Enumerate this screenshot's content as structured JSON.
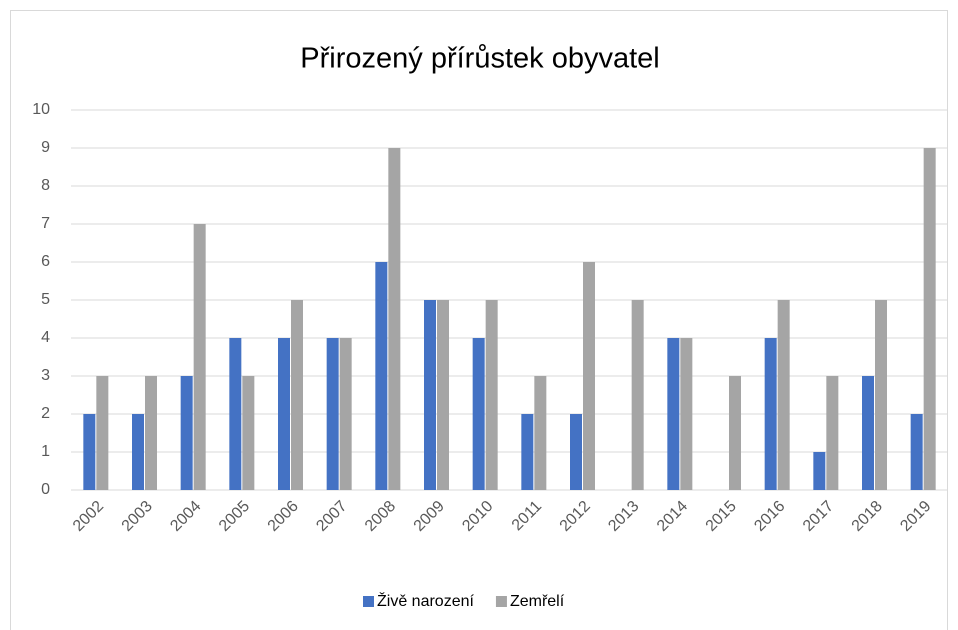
{
  "chart_data": {
    "type": "bar",
    "title": "Přirozený přírůstek obyvatel",
    "categories": [
      "2002",
      "2003",
      "2004",
      "2005",
      "2006",
      "2007",
      "2008",
      "2009",
      "2010",
      "2011",
      "2012",
      "2013",
      "2014",
      "2015",
      "2016",
      "2017",
      "2018",
      "2019"
    ],
    "series": [
      {
        "name": "Živě narození",
        "color": "#4472c4",
        "values": [
          2,
          2,
          3,
          4,
          4,
          4,
          6,
          5,
          4,
          2,
          2,
          0,
          4,
          0,
          4,
          1,
          3,
          2
        ]
      },
      {
        "name": "Zemřelí",
        "color": "#a5a5a5",
        "values": [
          3,
          3,
          7,
          3,
          5,
          4,
          9,
          5,
          5,
          3,
          6,
          5,
          4,
          3,
          5,
          3,
          5,
          9
        ]
      }
    ],
    "ylim": [
      0,
      10
    ],
    "yticks": [
      0,
      1,
      2,
      3,
      4,
      5,
      6,
      7,
      8,
      9,
      10
    ],
    "grid": true,
    "legend": "bottom"
  }
}
